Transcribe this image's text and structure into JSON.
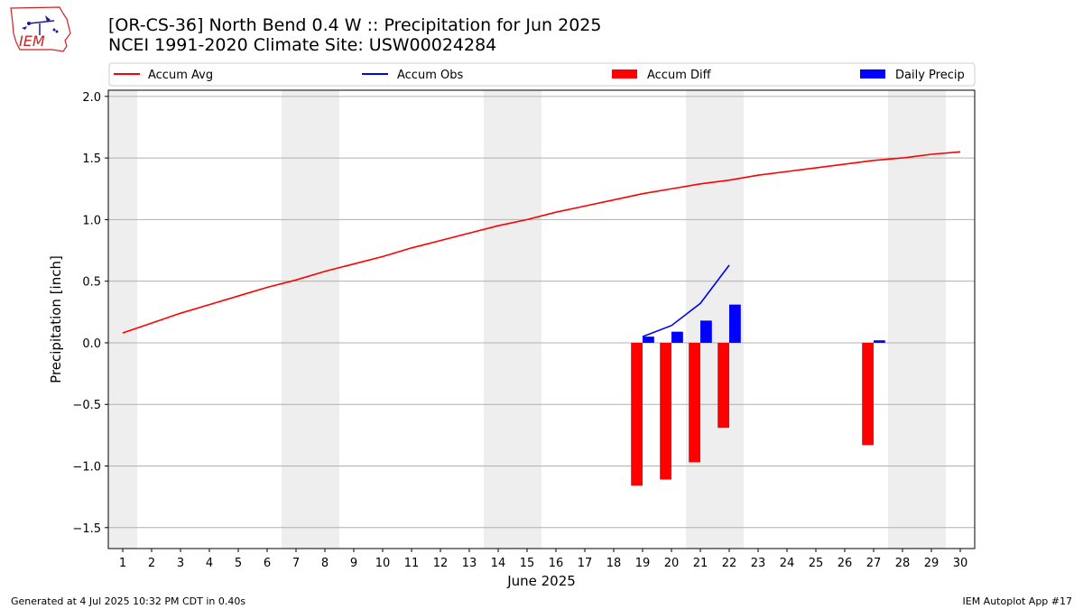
{
  "title_line1": "[OR-CS-36] North Bend 0.4 W :: Precipitation for Jun 2025",
  "title_line2": "NCEI 1991-2020 Climate Site: USW00024284",
  "logo_text": "IEM",
  "footer_left": "Generated at 4 Jul 2025 10:32 PM CDT in 0.40s",
  "footer_right": "IEM Autoplot App #17",
  "colors": {
    "avg": "#ff0000",
    "obs": "#0000ff",
    "diff": "#ff0000",
    "daily": "#0000ff",
    "weekend": "#eeeeee",
    "grid": "#b0b0b0"
  },
  "chart_data": {
    "type": "bar",
    "xlabel": "June 2025",
    "ylabel": "Precipitation [inch]",
    "ylim": [
      -1.67,
      2.05
    ],
    "xlim": [
      0.5,
      30.5
    ],
    "grid": true,
    "legend_position": "top",
    "x": [
      1,
      2,
      3,
      4,
      5,
      6,
      7,
      8,
      9,
      10,
      11,
      12,
      13,
      14,
      15,
      16,
      17,
      18,
      19,
      20,
      21,
      22,
      23,
      24,
      25,
      26,
      27,
      28,
      29,
      30
    ],
    "x_tick_labels": [
      "1",
      "2",
      "3",
      "4",
      "5",
      "6",
      "7",
      "8",
      "9",
      "10",
      "11",
      "12",
      "13",
      "14",
      "15",
      "16",
      "17",
      "18",
      "19",
      "20",
      "21",
      "22",
      "23",
      "24",
      "25",
      "26",
      "27",
      "28",
      "29",
      "30"
    ],
    "y_ticks": [
      -1.5,
      -1.0,
      -0.5,
      0.0,
      0.5,
      1.0,
      1.5,
      2.0
    ],
    "y_tick_labels": [
      "−1.5",
      "−1.0",
      "−0.5",
      "0.0",
      "0.5",
      "1.0",
      "1.5",
      "2.0"
    ],
    "weekend_days": [
      1,
      7,
      8,
      14,
      15,
      21,
      22,
      28,
      29
    ],
    "series": [
      {
        "name": "Accum Avg",
        "kind": "line",
        "x": [
          1,
          2,
          3,
          4,
          5,
          6,
          7,
          8,
          9,
          10,
          11,
          12,
          13,
          14,
          15,
          16,
          17,
          18,
          19,
          20,
          21,
          22,
          23,
          24,
          25,
          26,
          27,
          28,
          29,
          30
        ],
        "values": [
          0.08,
          0.16,
          0.24,
          0.31,
          0.38,
          0.45,
          0.51,
          0.58,
          0.64,
          0.7,
          0.77,
          0.83,
          0.89,
          0.95,
          1.0,
          1.06,
          1.11,
          1.16,
          1.21,
          1.25,
          1.29,
          1.32,
          1.36,
          1.39,
          1.42,
          1.45,
          1.48,
          1.5,
          1.53,
          1.55
        ]
      },
      {
        "name": "Accum Obs",
        "kind": "line",
        "x": [
          19,
          20,
          21,
          22
        ],
        "values": [
          0.05,
          0.14,
          0.32,
          0.63
        ]
      },
      {
        "name": "Accum Diff",
        "kind": "bar",
        "x": [
          19,
          20,
          21,
          22,
          27
        ],
        "values": [
          -1.16,
          -1.11,
          -0.97,
          -0.69,
          -0.83
        ]
      },
      {
        "name": "Daily Precip",
        "kind": "bar",
        "x": [
          19,
          20,
          21,
          22,
          27
        ],
        "values": [
          0.05,
          0.09,
          0.18,
          0.31,
          0.02
        ]
      }
    ]
  }
}
